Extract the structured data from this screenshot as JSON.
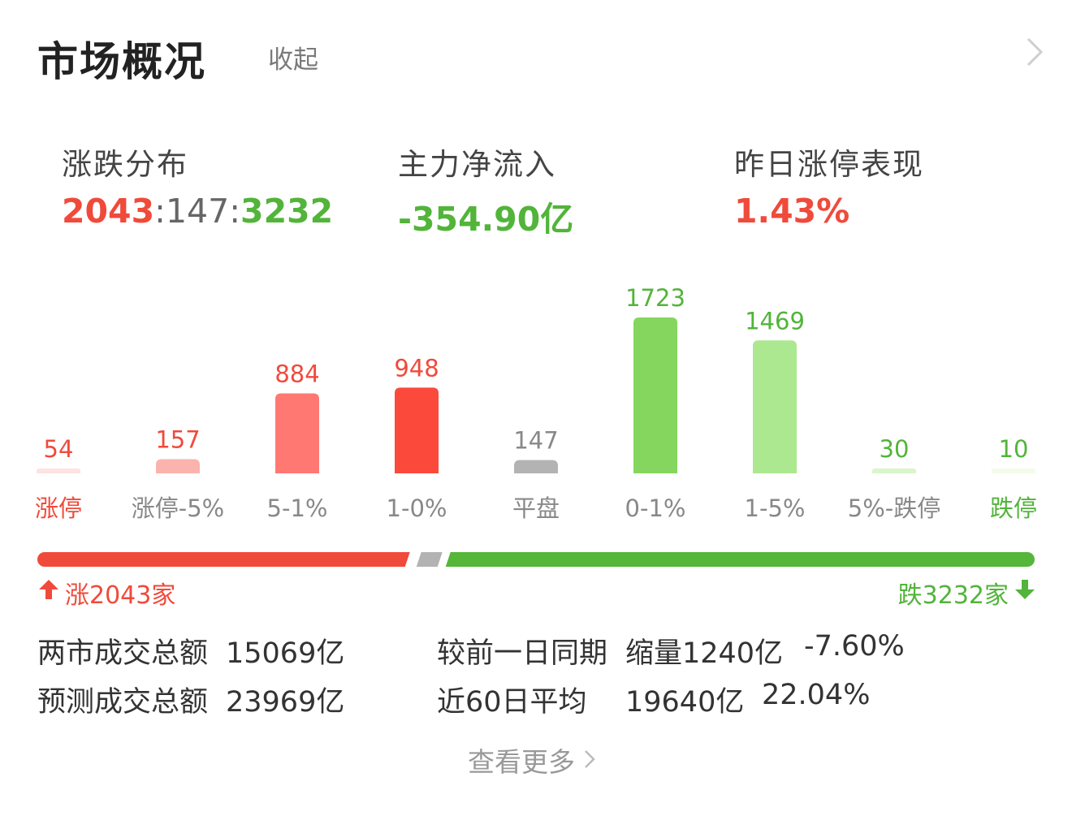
{
  "header": {
    "title": "市场概况",
    "collapse_label": "收起"
  },
  "stats": {
    "distribution": {
      "label": "涨跌分布",
      "up": "2043",
      "sep1": ":",
      "flat": "147",
      "sep2": ":",
      "down": "3232"
    },
    "net_inflow": {
      "label": "主力净流入",
      "value": "-354.90亿"
    },
    "limit_up_perf": {
      "label": "昨日涨停表现",
      "value": "1.43%"
    }
  },
  "chart_data": {
    "type": "bar",
    "categories": [
      "涨停",
      "涨停-5%",
      "5-1%",
      "1-0%",
      "平盘",
      "0-1%",
      "1-5%",
      "5%-跌停",
      "跌停"
    ],
    "values": [
      54,
      157,
      884,
      948,
      147,
      1723,
      1469,
      30,
      10
    ],
    "bar_colors": [
      "#fde3e1",
      "#fbb3ad",
      "#ff7872",
      "#fb4a3c",
      "#b3b3b3",
      "#85d65f",
      "#ace88f",
      "#d9f6c9",
      "#f3fbea"
    ],
    "value_colors": [
      "#f04a3b",
      "#f04a3b",
      "#f04a3b",
      "#f04a3b",
      "#888888",
      "#52b43a",
      "#52b43a",
      "#52b43a",
      "#52b43a"
    ],
    "category_colors": [
      "#f04a3b",
      "#888888",
      "#888888",
      "#888888",
      "#888888",
      "#888888",
      "#888888",
      "#888888",
      "#52b43a"
    ]
  },
  "summary": {
    "up_text": "涨2043家",
    "down_text": "跌3232家",
    "up_count": 2043,
    "flat_count": 147,
    "down_count": 3232,
    "colors": {
      "up": "#f04a3b",
      "flat": "#b3b3b3",
      "down": "#55b63a"
    }
  },
  "turnover": {
    "total_label": "两市成交总额",
    "total_value": "15069亿",
    "compare_label": "较前一日同期",
    "compare_value": "缩量1240亿",
    "compare_pct": "-7.60%",
    "forecast_label": "预测成交总额",
    "forecast_value": "23969亿",
    "avg60_label": "近60日平均",
    "avg60_value": "19640亿",
    "avg60_pct": "22.04%"
  },
  "footer": {
    "view_more": "查看更多"
  }
}
